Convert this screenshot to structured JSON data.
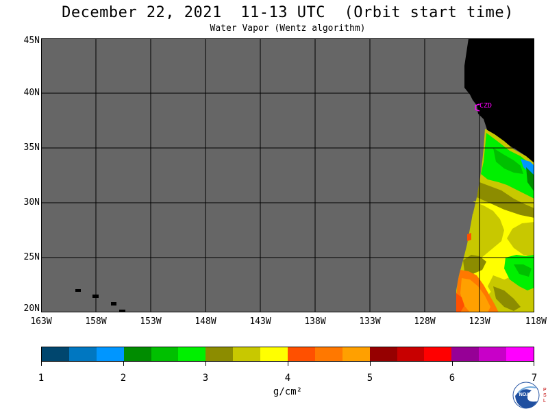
{
  "header": {
    "title": "December 22, 2021  11-13 UTC  (Orbit start time)",
    "subtitle": "Water Vapor (Wentz algorithm)"
  },
  "map": {
    "lat_labels": [
      "45N",
      "40N",
      "35N",
      "30N",
      "25N",
      "20N"
    ],
    "lon_labels": [
      "163W",
      "158W",
      "153W",
      "148W",
      "143W",
      "138W",
      "133W",
      "128W",
      "123W",
      "118W"
    ],
    "station_label": "CZD",
    "colors": {
      "no_data": "#666666",
      "land": "#000000",
      "station": "#ff00ff"
    }
  },
  "colorbar": {
    "tick_labels": [
      "1",
      "2",
      "3",
      "4",
      "5",
      "6",
      "7"
    ],
    "unit": "g/cm²",
    "colors": [
      "#00466e",
      "#0077c1",
      "#0096ff",
      "#008c00",
      "#00c000",
      "#00f000",
      "#8c8c00",
      "#c8c800",
      "#ffff00",
      "#ff5000",
      "#ff7800",
      "#ffa000",
      "#960000",
      "#c80000",
      "#ff0000",
      "#960096",
      "#c800c8",
      "#ff00ff"
    ]
  },
  "logo": {
    "name": "NOAA",
    "side_text": "PSL"
  }
}
